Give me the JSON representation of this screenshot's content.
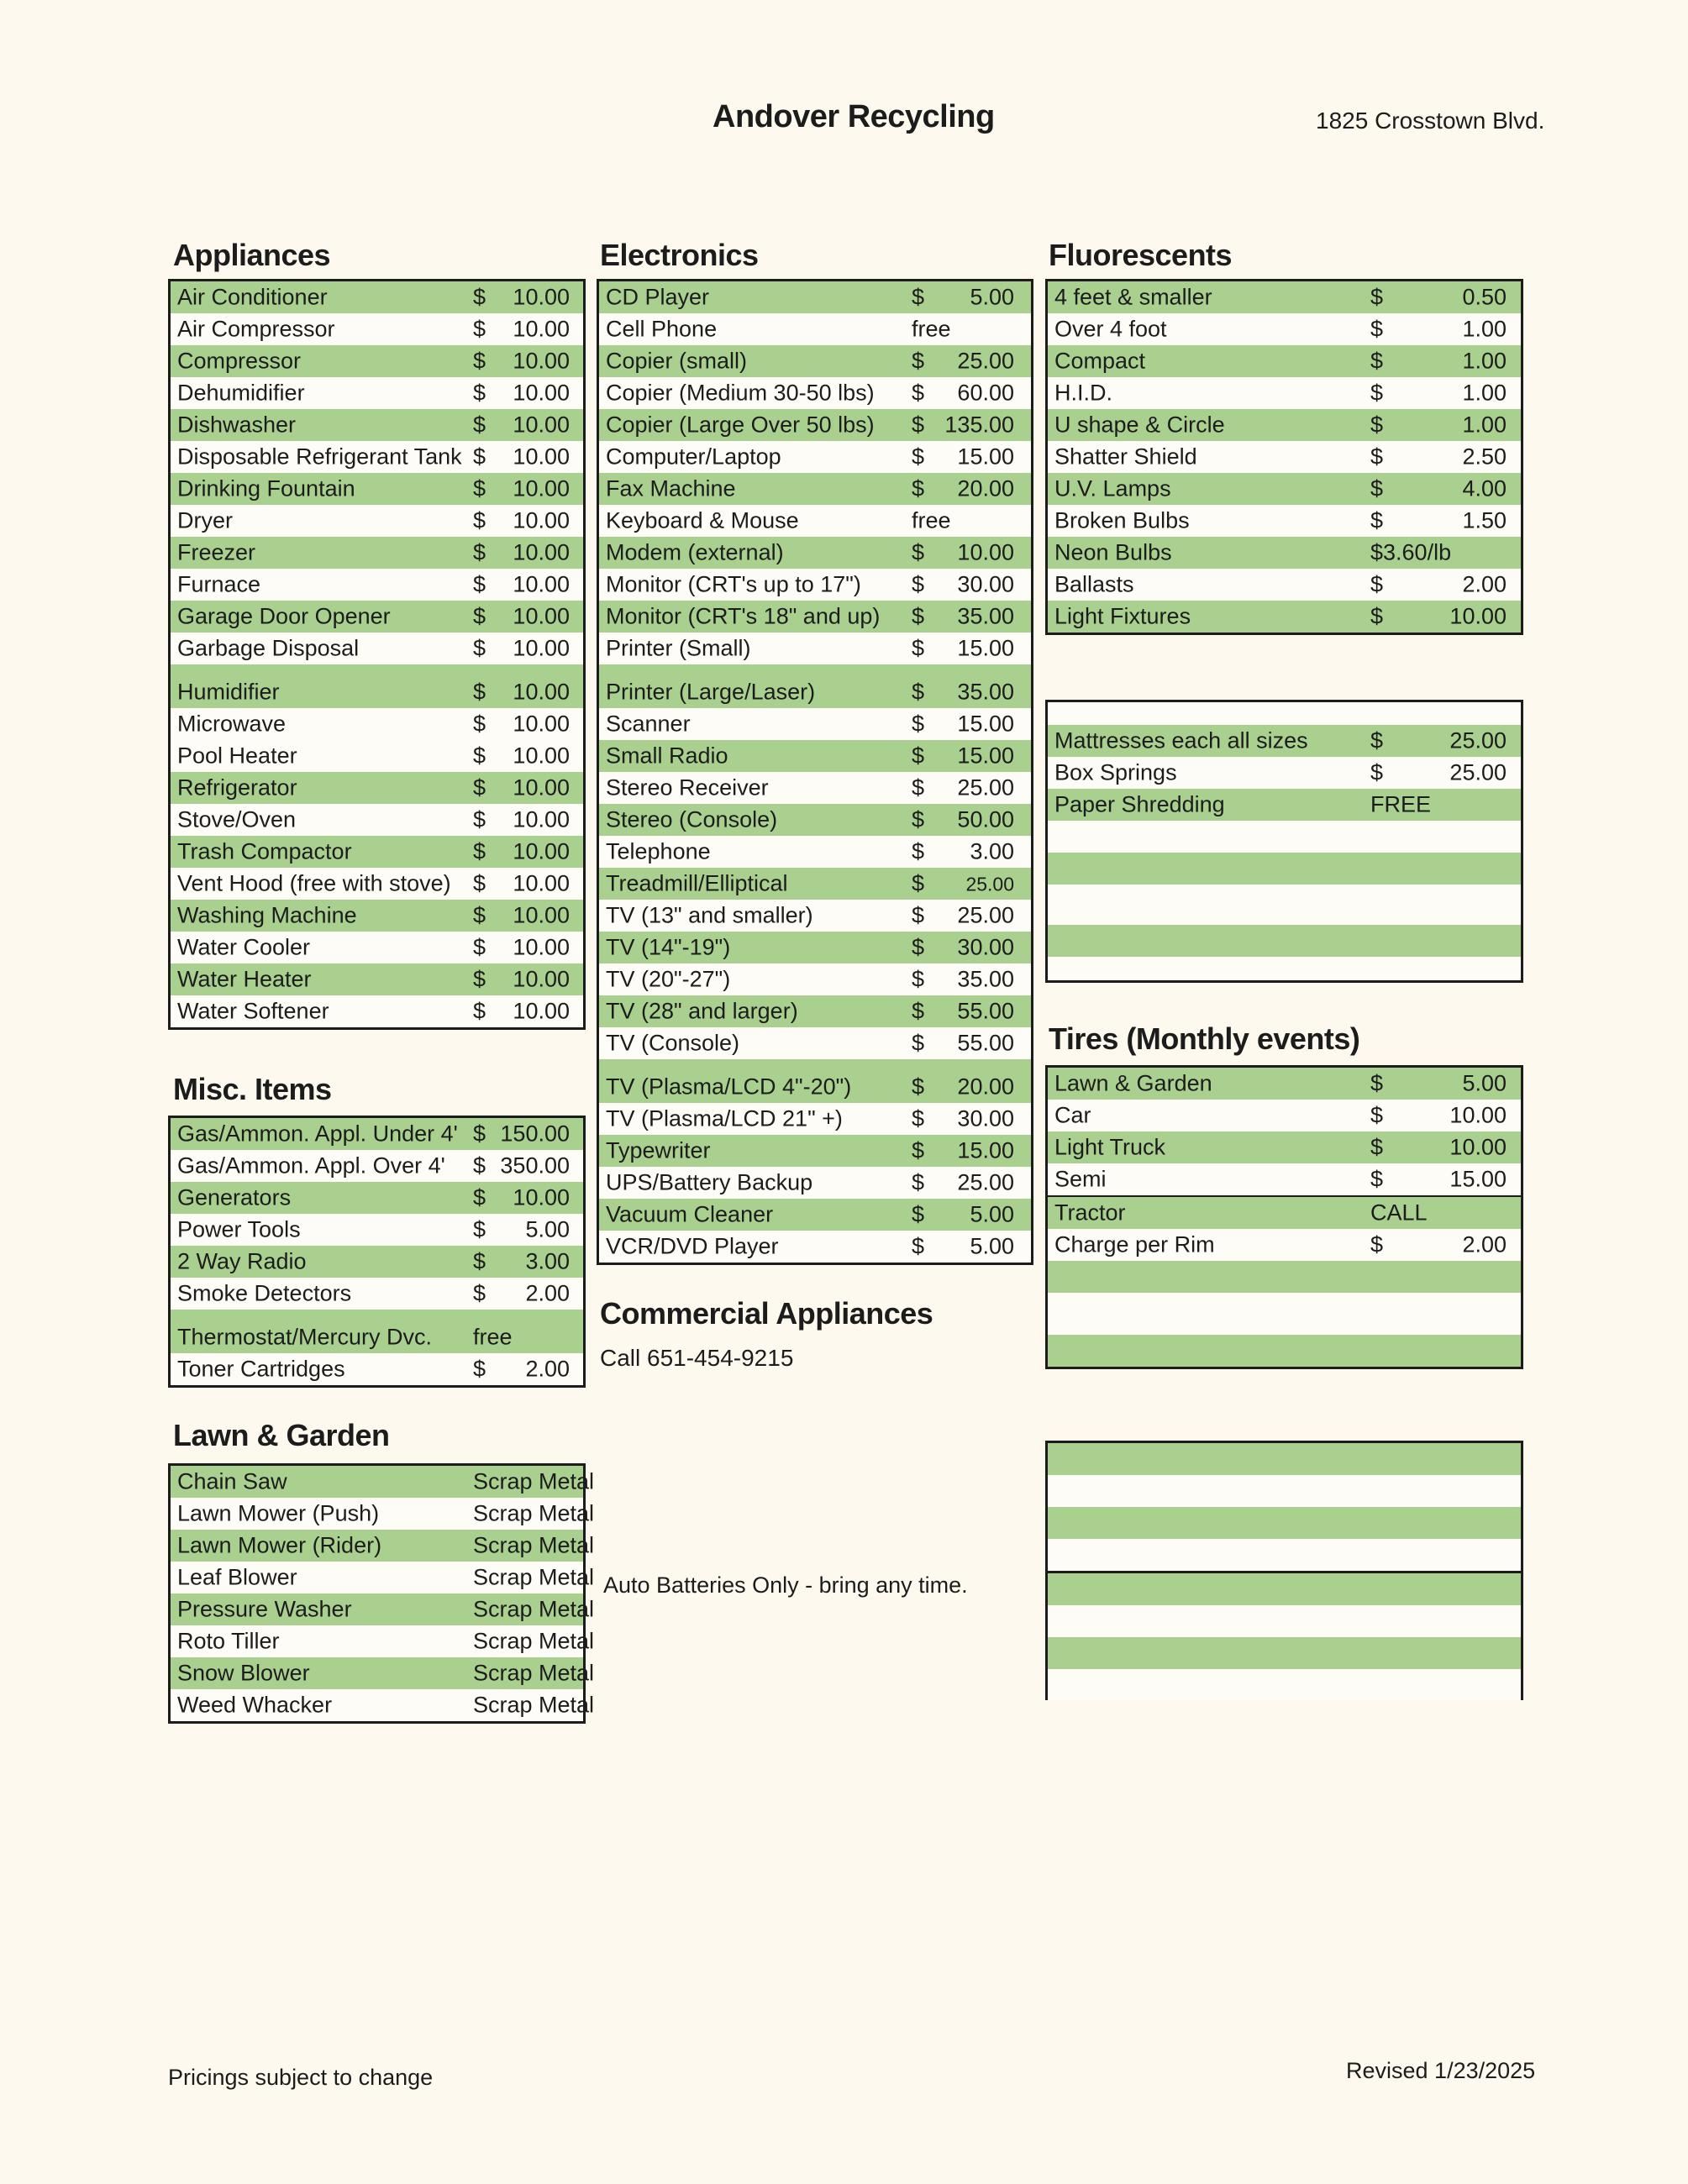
{
  "colors": {
    "stripe_green": "#a9d08e",
    "row_white": "#fdfcf6",
    "page_bg": "#fdf9ee",
    "ink": "#1c1c1c"
  },
  "header": {
    "title": "Andover Recycling",
    "address": "1825 Crosstown Blvd."
  },
  "notes": {
    "commercial_heading": "Commercial Appliances",
    "commercial_call": "Call 651-454-9215",
    "auto_batteries": "Auto Batteries Only - bring any time."
  },
  "footer": {
    "left": "Pricings subject to change",
    "right": "Revised 1/23/2025"
  },
  "sections": {
    "appliances": {
      "heading": "Appliances",
      "rows": [
        {
          "label": "Air Conditioner",
          "currency": "$",
          "amount": "10.00",
          "bg": "g"
        },
        {
          "label": "Air Compressor",
          "currency": "$",
          "amount": "10.00",
          "bg": "w"
        },
        {
          "label": "Compressor",
          "currency": "$",
          "amount": "10.00",
          "bg": "g"
        },
        {
          "label": "Dehumidifier",
          "currency": "$",
          "amount": "10.00",
          "bg": "w"
        },
        {
          "label": "Dishwasher",
          "currency": "$",
          "amount": "10.00",
          "bg": "g"
        },
        {
          "label": "Disposable Refrigerant Tank",
          "currency": "$",
          "amount": "10.00",
          "bg": "w"
        },
        {
          "label": "Drinking Fountain",
          "currency": "$",
          "amount": "10.00",
          "bg": "g"
        },
        {
          "label": "Dryer",
          "currency": "$",
          "amount": "10.00",
          "bg": "w"
        },
        {
          "label": "Freezer",
          "currency": "$",
          "amount": "10.00",
          "bg": "g"
        },
        {
          "label": "Furnace",
          "currency": "$",
          "amount": "10.00",
          "bg": "w"
        },
        {
          "label": "Garage Door Opener",
          "currency": "$",
          "amount": "10.00",
          "bg": "g"
        },
        {
          "label": "Garbage Disposal",
          "currency": "$",
          "amount": "10.00",
          "bg": "w"
        },
        {
          "spacer": true,
          "bg": "g",
          "h": 14
        },
        {
          "label": "Humidifier",
          "currency": "$",
          "amount": "10.00",
          "bg": "g"
        },
        {
          "label": "Microwave",
          "currency": "$",
          "amount": "10.00",
          "bg": "w"
        },
        {
          "label": "Pool Heater",
          "currency": "$",
          "amount": "10.00",
          "bg": "w"
        },
        {
          "label": "Refrigerator",
          "currency": "$",
          "amount": "10.00",
          "bg": "g"
        },
        {
          "label": "Stove/Oven",
          "currency": "$",
          "amount": "10.00",
          "bg": "w"
        },
        {
          "label": "Trash Compactor",
          "currency": "$",
          "amount": "10.00",
          "bg": "g"
        },
        {
          "label": "Vent Hood (free with stove)",
          "currency": "$",
          "amount": "10.00",
          "bg": "w"
        },
        {
          "label": "Washing Machine",
          "currency": "$",
          "amount": "10.00",
          "bg": "g"
        },
        {
          "label": "Water Cooler",
          "currency": "$",
          "amount": "10.00",
          "bg": "w"
        },
        {
          "label": "Water Heater",
          "currency": "$",
          "amount": "10.00",
          "bg": "g"
        },
        {
          "label": "Water Softener",
          "currency": "$",
          "amount": "10.00",
          "bg": "w"
        }
      ]
    },
    "electronics": {
      "heading": "Electronics",
      "rows": [
        {
          "label": "CD Player",
          "currency": "$",
          "amount": "5.00",
          "bg": "g"
        },
        {
          "label": "Cell Phone",
          "text": "free",
          "bg": "w"
        },
        {
          "label": "Copier (small)",
          "currency": "$",
          "amount": "25.00",
          "bg": "g"
        },
        {
          "label": "Copier (Medium 30-50 lbs)",
          "currency": "$",
          "amount": "60.00",
          "bg": "w"
        },
        {
          "label": "Copier (Large Over 50 lbs)",
          "currency": "$",
          "amount": "135.00",
          "bg": "g"
        },
        {
          "label": "Computer/Laptop",
          "currency": "$",
          "amount": "15.00",
          "bg": "w"
        },
        {
          "label": "Fax Machine",
          "currency": "$",
          "amount": "20.00",
          "bg": "g"
        },
        {
          "label": "Keyboard & Mouse",
          "text": "free",
          "bg": "w"
        },
        {
          "label": "Modem (external)",
          "currency": "$",
          "amount": "10.00",
          "bg": "g"
        },
        {
          "label": "Monitor (CRT's up to 17\")",
          "currency": "$",
          "amount": "30.00",
          "bg": "w"
        },
        {
          "label": "Monitor (CRT's 18\" and up)",
          "currency": "$",
          "amount": "35.00",
          "bg": "g"
        },
        {
          "label": "Printer (Small)",
          "currency": "$",
          "amount": "15.00",
          "bg": "w"
        },
        {
          "spacer": true,
          "bg": "g",
          "h": 14
        },
        {
          "label": "Printer (Large/Laser)",
          "currency": "$",
          "amount": "35.00",
          "bg": "g"
        },
        {
          "label": "Scanner",
          "currency": "$",
          "amount": "15.00",
          "bg": "w"
        },
        {
          "label": "Small Radio",
          "currency": "$",
          "amount": "15.00",
          "bg": "g"
        },
        {
          "label": "Stereo Receiver",
          "currency": "$",
          "amount": "25.00",
          "bg": "w"
        },
        {
          "label": "Stereo (Console)",
          "currency": "$",
          "amount": "50.00",
          "bg": "g"
        },
        {
          "label": "Telephone",
          "currency": "$",
          "amount": "3.00",
          "bg": "w"
        },
        {
          "label": "Treadmill/Elliptical",
          "currency": "$",
          "amount": "25.00",
          "bg": "g",
          "small": true
        },
        {
          "label": "TV (13\" and smaller)",
          "currency": "$",
          "amount": "25.00",
          "bg": "w"
        },
        {
          "label": "TV (14\"-19\")",
          "currency": "$",
          "amount": "30.00",
          "bg": "g"
        },
        {
          "label": "TV (20\"-27\")",
          "currency": "$",
          "amount": "35.00",
          "bg": "w"
        },
        {
          "label": "TV (28\" and larger)",
          "currency": "$",
          "amount": "55.00",
          "bg": "g"
        },
        {
          "label": "TV (Console)",
          "currency": "$",
          "amount": "55.00",
          "bg": "w"
        },
        {
          "spacer": true,
          "bg": "g",
          "h": 14
        },
        {
          "label": "TV (Plasma/LCD 4\"-20\")",
          "currency": "$",
          "amount": "20.00",
          "bg": "g"
        },
        {
          "label": "TV (Plasma/LCD 21\" +)",
          "currency": "$",
          "amount": "30.00",
          "bg": "w"
        },
        {
          "label": "Typewriter",
          "currency": "$",
          "amount": "15.00",
          "bg": "g"
        },
        {
          "label": "UPS/Battery Backup",
          "currency": "$",
          "amount": "25.00",
          "bg": "w"
        },
        {
          "label": "Vacuum Cleaner",
          "currency": "$",
          "amount": "5.00",
          "bg": "g"
        },
        {
          "label": "VCR/DVD Player",
          "currency": "$",
          "amount": "5.00",
          "bg": "w"
        }
      ]
    },
    "fluorescents": {
      "heading": "Fluorescents",
      "rows": [
        {
          "label": "4 feet & smaller",
          "currency": "$",
          "amount": "0.50",
          "bg": "g"
        },
        {
          "label": "Over 4 foot",
          "currency": "$",
          "amount": "1.00",
          "bg": "w"
        },
        {
          "label": "Compact",
          "currency": "$",
          "amount": "1.00",
          "bg": "g"
        },
        {
          "label": "H.I.D.",
          "currency": "$",
          "amount": "1.00",
          "bg": "w"
        },
        {
          "label": "U shape & Circle",
          "currency": "$",
          "amount": "1.00",
          "bg": "g"
        },
        {
          "label": "Shatter Shield",
          "currency": "$",
          "amount": "2.50",
          "bg": "w"
        },
        {
          "label": "U.V. Lamps",
          "currency": "$",
          "amount": "4.00",
          "bg": "g"
        },
        {
          "label": "Broken Bulbs",
          "currency": "$",
          "amount": "1.50",
          "bg": "w"
        },
        {
          "label": "Neon Bulbs",
          "text": "$3.60/lb",
          "bg": "g"
        },
        {
          "label": "Ballasts",
          "currency": "$",
          "amount": "2.00",
          "bg": "w"
        },
        {
          "label": "Light Fixtures",
          "currency": "$",
          "amount": "10.00",
          "bg": "g"
        }
      ]
    },
    "mattresses": {
      "rows": [
        {
          "empty": true,
          "bg": "w",
          "h": 27
        },
        {
          "label": "Mattresses each all sizes",
          "currency": "$",
          "amount": "25.00",
          "bg": "g"
        },
        {
          "label": "Box Springs",
          "currency": "$",
          "amount": "25.00",
          "bg": "w"
        },
        {
          "label": "Paper Shredding",
          "text": "FREE",
          "bg": "g"
        },
        {
          "empty": true,
          "bg": "w"
        },
        {
          "empty": true,
          "bg": "g"
        },
        {
          "empty": true,
          "bg": "w",
          "h": 48
        },
        {
          "empty": true,
          "bg": "g"
        },
        {
          "empty": true,
          "bg": "w",
          "h": 28
        }
      ]
    },
    "misc": {
      "heading": "Misc. Items",
      "rows": [
        {
          "label": "Gas/Ammon. Appl. Under 4'",
          "currency": "$",
          "amount": "150.00",
          "bg": "g"
        },
        {
          "label": "Gas/Ammon. Appl. Over 4'",
          "currency": "$",
          "amount": "350.00",
          "bg": "w"
        },
        {
          "label": "Generators",
          "currency": "$",
          "amount": "10.00",
          "bg": "g"
        },
        {
          "label": "Power Tools",
          "currency": "$",
          "amount": "5.00",
          "bg": "w"
        },
        {
          "label": "2 Way Radio",
          "currency": "$",
          "amount": "3.00",
          "bg": "g"
        },
        {
          "label": "Smoke Detectors",
          "currency": "$",
          "amount": "2.00",
          "bg": "w"
        },
        {
          "spacer": true,
          "bg": "g",
          "h": 14
        },
        {
          "label": "Thermostat/Mercury Dvc.",
          "text": "free",
          "bg": "g"
        },
        {
          "label": "Toner Cartridges",
          "currency": "$",
          "amount": "2.00",
          "bg": "w"
        }
      ]
    },
    "tires": {
      "heading": "Tires (Monthly events)",
      "rows": [
        {
          "label": "Lawn & Garden",
          "currency": "$",
          "amount": "5.00",
          "bg": "g"
        },
        {
          "label": "Car",
          "currency": "$",
          "amount": "10.00",
          "bg": "w"
        },
        {
          "label": "Light Truck",
          "currency": "$",
          "amount": "10.00",
          "bg": "g"
        },
        {
          "label": "Semi",
          "currency": "$",
          "amount": "15.00",
          "bg": "w"
        },
        {
          "label": "Tractor",
          "text": "CALL",
          "bg": "g",
          "divider": 2
        },
        {
          "label": "Charge per Rim",
          "currency": "$",
          "amount": "2.00",
          "bg": "w"
        },
        {
          "empty": true,
          "bg": "g"
        },
        {
          "empty": true,
          "bg": "w",
          "h": 50
        },
        {
          "empty": true,
          "bg": "g"
        }
      ]
    },
    "lawn": {
      "heading": "Lawn & Garden",
      "rows": [
        {
          "label": "Chain Saw",
          "text": "Scrap Metal",
          "bg": "g"
        },
        {
          "label": "Lawn Mower (Push)",
          "text": "Scrap Metal",
          "bg": "w"
        },
        {
          "label": "Lawn Mower (Rider)",
          "text": "Scrap Metal",
          "bg": "g"
        },
        {
          "label": "Leaf Blower",
          "text": "Scrap Metal",
          "bg": "w"
        },
        {
          "label": "Pressure Washer",
          "text": "Scrap Metal",
          "bg": "g"
        },
        {
          "label": "Roto Tiller",
          "text": "Scrap Metal",
          "bg": "w"
        },
        {
          "label": "Snow Blower",
          "text": "Scrap Metal",
          "bg": "g"
        },
        {
          "label": "Weed Whacker",
          "text": "Scrap Metal",
          "bg": "w"
        }
      ]
    },
    "bottom_box": {
      "rows": [
        {
          "empty": true,
          "bg": "g"
        },
        {
          "empty": true,
          "bg": "w"
        },
        {
          "empty": true,
          "bg": "g"
        },
        {
          "empty": true,
          "bg": "w"
        },
        {
          "empty": true,
          "bg": "g",
          "divider": 3
        },
        {
          "empty": true,
          "bg": "w"
        },
        {
          "empty": true,
          "bg": "g"
        },
        {
          "empty": true,
          "bg": "w",
          "h": 37
        }
      ]
    }
  }
}
